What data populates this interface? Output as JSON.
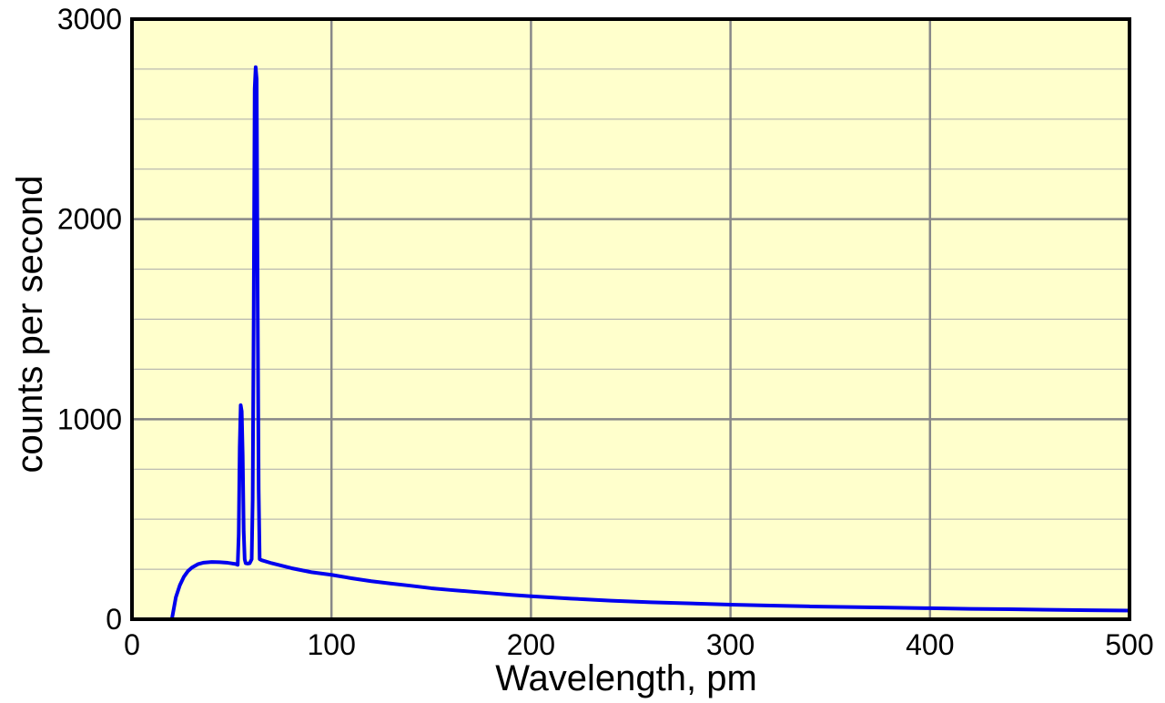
{
  "chart_data": {
    "type": "line",
    "title": "",
    "xlabel": "Wavelength, pm",
    "ylabel": "counts per second",
    "xlim": [
      0,
      500
    ],
    "ylim": [
      0,
      3000
    ],
    "x_ticks": [
      0,
      100,
      200,
      300,
      400,
      500
    ],
    "y_ticks": [
      0,
      1000,
      2000,
      3000
    ],
    "x_tick_labels": [
      "0",
      "100",
      "200",
      "300",
      "400",
      "500"
    ],
    "y_tick_labels": [
      "0",
      "1000",
      "2000",
      "3000"
    ],
    "grid": true,
    "legend": "none",
    "colors": {
      "plot_background": "#ffffcc",
      "line": "#0000ee",
      "grid_major": "#888888",
      "grid_minor": "#aaaaaa",
      "frame": "#000000"
    },
    "series": [
      {
        "x": [
          20,
          22,
          24,
          26,
          28,
          30,
          33,
          36,
          40,
          44,
          48,
          52,
          53,
          53.5,
          54,
          54.5,
          55,
          55.5,
          56,
          56.5,
          57,
          58,
          59,
          60,
          60.5,
          61,
          61.5,
          62,
          62.5,
          63,
          63.5,
          64,
          65,
          70,
          80,
          90,
          100,
          110,
          120,
          130,
          140,
          150,
          160,
          170,
          180,
          190,
          200,
          220,
          240,
          260,
          280,
          300,
          320,
          340,
          360,
          380,
          400,
          420,
          440,
          460,
          480,
          500
        ],
        "y": [
          0,
          110,
          170,
          212,
          240,
          258,
          275,
          283,
          286,
          285,
          282,
          276,
          272,
          420,
          860,
          1070,
          1040,
          820,
          440,
          300,
          280,
          278,
          280,
          300,
          600,
          1500,
          2650,
          2760,
          2700,
          1600,
          650,
          300,
          295,
          280,
          255,
          235,
          222,
          205,
          190,
          178,
          167,
          155,
          146,
          138,
          130,
          122,
          115,
          103,
          93,
          85,
          79,
          73,
          68,
          64,
          61,
          58,
          55,
          52,
          50,
          47,
          45,
          43
        ]
      }
    ]
  }
}
